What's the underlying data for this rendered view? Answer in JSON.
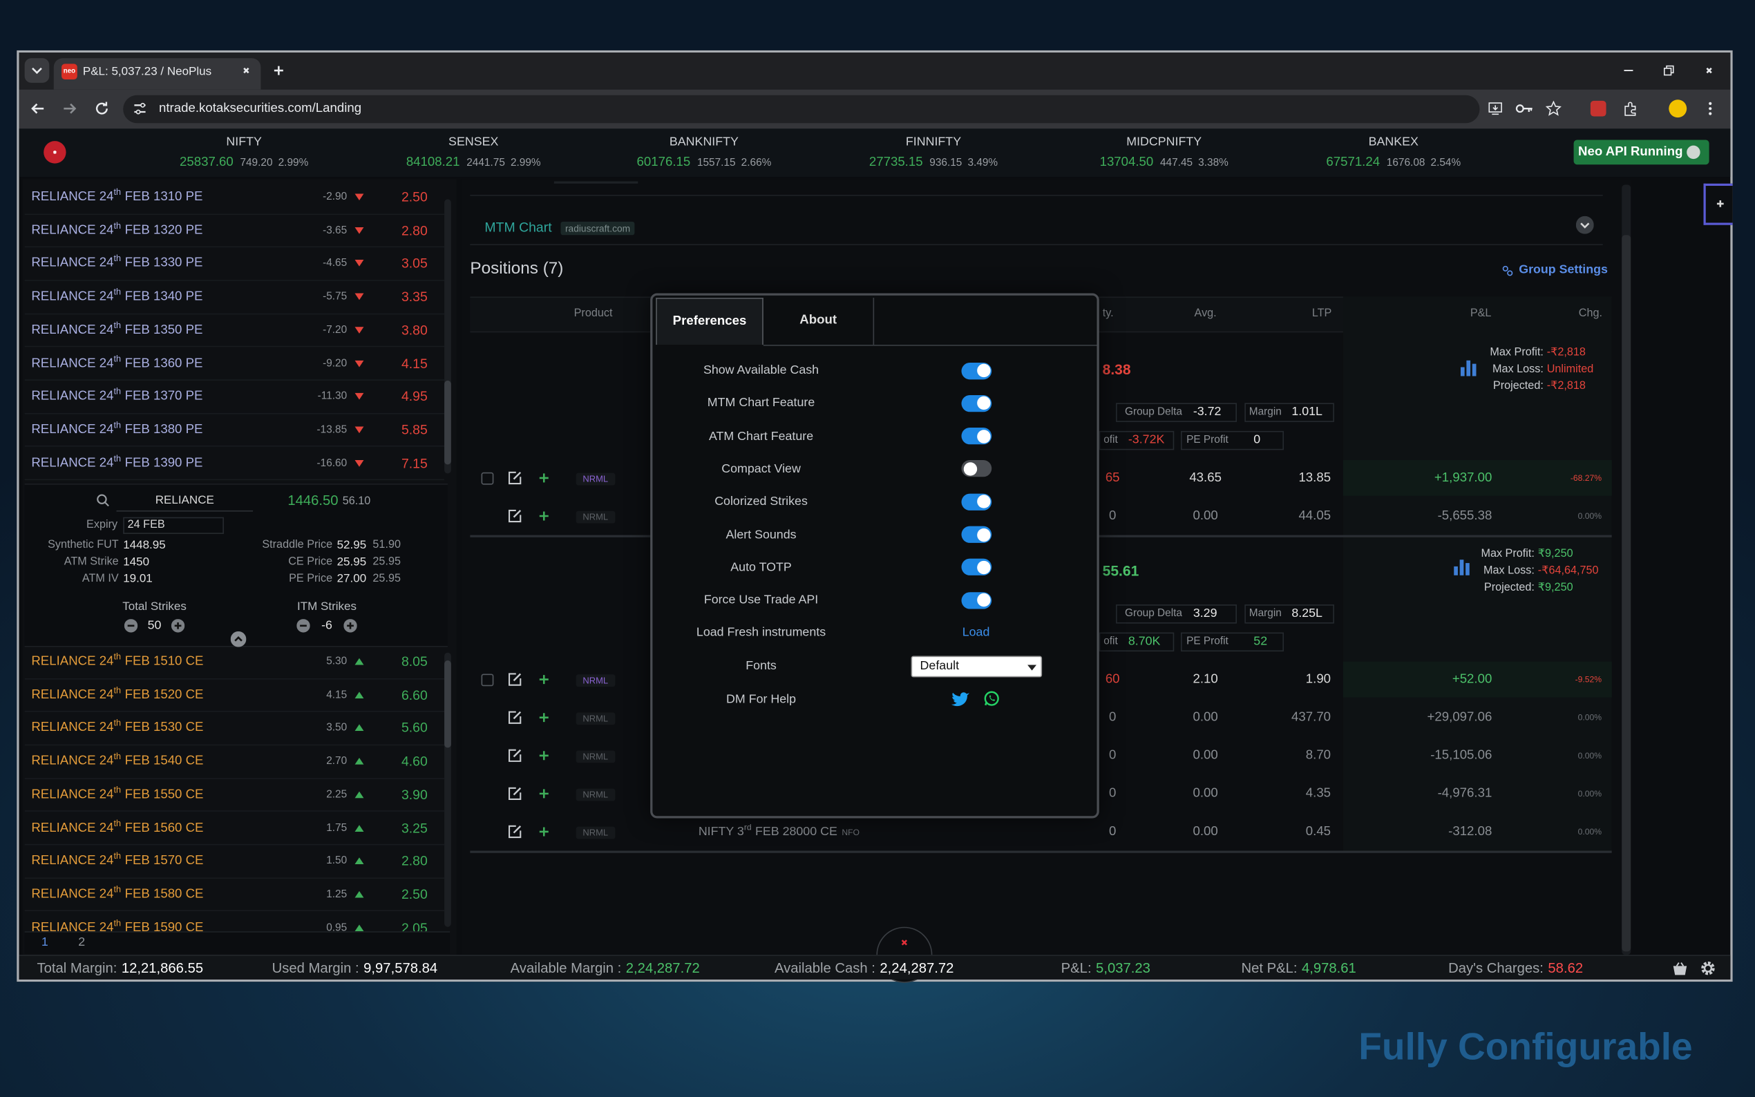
{
  "browser": {
    "tab_icon": "neo",
    "tab_title": "P&L: 5,037.23 / NeoPlus",
    "url": "ntrade.kotaksecurities.com/Landing"
  },
  "indices": [
    {
      "name": "NIFTY",
      "ltp": "25837.60",
      "change": "749.20",
      "pct": "2.99%"
    },
    {
      "name": "SENSEX",
      "ltp": "84108.21",
      "change": "2441.75",
      "pct": "2.99%"
    },
    {
      "name": "BANKNIFTY",
      "ltp": "60176.15",
      "change": "1557.15",
      "pct": "2.66%"
    },
    {
      "name": "FINNIFTY",
      "ltp": "27735.15",
      "change": "936.15",
      "pct": "3.49%"
    },
    {
      "name": "MIDCPNIFTY",
      "ltp": "13704.50",
      "change": "447.45",
      "pct": "3.38%"
    },
    {
      "name": "BANKEX",
      "ltp": "67571.24",
      "change": "1676.08",
      "pct": "2.54%"
    }
  ],
  "api_status": "Neo API Running",
  "put_chain": [
    {
      "prefix": "RELIANCE 24",
      "sup": "th",
      "rest": "FEB 1310 PE",
      "change": "-2.90",
      "ltp": "2.50"
    },
    {
      "prefix": "RELIANCE 24",
      "sup": "th",
      "rest": "FEB 1320 PE",
      "change": "-3.65",
      "ltp": "2.80"
    },
    {
      "prefix": "RELIANCE 24",
      "sup": "th",
      "rest": "FEB 1330 PE",
      "change": "-4.65",
      "ltp": "3.05"
    },
    {
      "prefix": "RELIANCE 24",
      "sup": "th",
      "rest": "FEB 1340 PE",
      "change": "-5.75",
      "ltp": "3.35"
    },
    {
      "prefix": "RELIANCE 24",
      "sup": "th",
      "rest": "FEB 1350 PE",
      "change": "-7.20",
      "ltp": "3.80"
    },
    {
      "prefix": "RELIANCE 24",
      "sup": "th",
      "rest": "FEB 1360 PE",
      "change": "-9.20",
      "ltp": "4.15"
    },
    {
      "prefix": "RELIANCE 24",
      "sup": "th",
      "rest": "FEB 1370 PE",
      "change": "-11.30",
      "ltp": "4.95"
    },
    {
      "prefix": "RELIANCE 24",
      "sup": "th",
      "rest": "FEB 1380 PE",
      "change": "-13.85",
      "ltp": "5.85"
    },
    {
      "prefix": "RELIANCE 24",
      "sup": "th",
      "rest": "FEB 1390 PE",
      "change": "-16.60",
      "ltp": "7.15"
    }
  ],
  "underlying": {
    "search": "RELIANCE",
    "ltp": "1446.50",
    "change": "56.10",
    "expiry_label": "Expiry",
    "expiry": "24 FEB",
    "stats": [
      {
        "label": "Synthetic FUT",
        "value": "1448.95"
      },
      {
        "label": "ATM Strike",
        "value": "1450"
      },
      {
        "label": "ATM IV",
        "value": "19.01"
      }
    ],
    "prices": [
      {
        "label": "Straddle Price",
        "value": "52.95",
        "prev": "51.90"
      },
      {
        "label": "CE Price",
        "value": "25.95",
        "prev": "25.95"
      },
      {
        "label": "PE Price",
        "value": "27.00",
        "prev": "25.95"
      }
    ],
    "total_strikes": {
      "label": "Total Strikes",
      "value": "50"
    },
    "itm_strikes": {
      "label": "ITM Strikes",
      "value": "-6"
    }
  },
  "call_chain": [
    {
      "prefix": "RELIANCE 24",
      "sup": "th",
      "rest": "FEB 1510 CE",
      "change": "5.30",
      "ltp": "8.05"
    },
    {
      "prefix": "RELIANCE 24",
      "sup": "th",
      "rest": "FEB 1520 CE",
      "change": "4.15",
      "ltp": "6.60"
    },
    {
      "prefix": "RELIANCE 24",
      "sup": "th",
      "rest": "FEB 1530 CE",
      "change": "3.50",
      "ltp": "5.60"
    },
    {
      "prefix": "RELIANCE 24",
      "sup": "th",
      "rest": "FEB 1540 CE",
      "change": "2.70",
      "ltp": "4.60"
    },
    {
      "prefix": "RELIANCE 24",
      "sup": "th",
      "rest": "FEB 1550 CE",
      "change": "2.25",
      "ltp": "3.90"
    },
    {
      "prefix": "RELIANCE 24",
      "sup": "th",
      "rest": "FEB 1560 CE",
      "change": "1.75",
      "ltp": "3.25"
    },
    {
      "prefix": "RELIANCE 24",
      "sup": "th",
      "rest": "FEB 1570 CE",
      "change": "1.50",
      "ltp": "2.80"
    },
    {
      "prefix": "RELIANCE 24",
      "sup": "th",
      "rest": "FEB 1580 CE",
      "change": "1.25",
      "ltp": "2.50"
    },
    {
      "prefix": "RELIANCE 24",
      "sup": "th",
      "rest": "FEB 1590 CE",
      "change": "0.95",
      "ltp": "2.05"
    }
  ],
  "pages": [
    "1",
    "2"
  ],
  "mtm": {
    "title": "MTM Chart",
    "source": "radiuscraft.com"
  },
  "positions": {
    "title": "Positions (7)",
    "group_settings": "Group Settings",
    "columns": [
      "Product",
      "ty.",
      "Avg.",
      "LTP",
      "P&L",
      "Chg."
    ],
    "groups": [
      {
        "partial": {
          "text": "8.38",
          "color": "#e5453c"
        },
        "delta": {
          "label": "Group Delta",
          "value": "-3.72"
        },
        "margin": {
          "label": "Margin",
          "value": "1.01L"
        },
        "ce_profit": {
          "label": "ofit",
          "value": "-3.72K",
          "color": "#e5453c"
        },
        "pe_profit": {
          "label": "PE Profit",
          "value": "0",
          "color": "#e8e8e8"
        },
        "max_profit": {
          "label": "Max Profit:",
          "value": "-₹2,818",
          "color": "#e5453c"
        },
        "max_loss": {
          "label": "Max Loss:",
          "value": "Unlimited",
          "color": "#e5453c"
        },
        "projected": {
          "label": "Projected:",
          "value": "-₹2,818",
          "color": "#e5453c"
        },
        "rows": [
          {
            "product": "NRML",
            "qty": "65",
            "avg": "43.65",
            "ltp": "13.85",
            "pnl": "+1,937.00",
            "chg": "-68.27%"
          },
          {
            "product": "NRML",
            "qty": "0",
            "avg": "0.00",
            "ltp": "44.05",
            "pnl": "-5,655.38",
            "chg": "0.00%"
          }
        ]
      },
      {
        "partial": {
          "text": "55.61",
          "color": "#4cc26a"
        },
        "delta": {
          "label": "Group Delta",
          "value": "3.29"
        },
        "margin": {
          "label": "Margin",
          "value": "8.25L"
        },
        "ce_profit": {
          "label": "ofit",
          "value": "8.70K",
          "color": "#4cc26a"
        },
        "pe_profit": {
          "label": "PE Profit",
          "value": "52",
          "color": "#4cc26a"
        },
        "max_profit": {
          "label": "Max Profit:",
          "value": "₹9,250",
          "color": "#4cc26a"
        },
        "max_loss": {
          "label": "Max Loss:",
          "value": "-₹64,64,750",
          "color": "#e5453c"
        },
        "projected": {
          "label": "Projected:",
          "value": "₹9,250",
          "color": "#4cc26a"
        },
        "rows": [
          {
            "product": "NRML",
            "qty": "60",
            "avg": "2.10",
            "ltp": "1.90",
            "pnl": "+52.00",
            "chg": "-9.52%"
          },
          {
            "product": "NRML",
            "qty": "0",
            "avg": "0.00",
            "ltp": "437.70",
            "pnl": "+29,097.06",
            "chg": "0.00%"
          },
          {
            "product": "NRML",
            "qty": "0",
            "avg": "0.00",
            "ltp": "8.70",
            "pnl": "-15,105.06",
            "chg": "0.00%"
          },
          {
            "product": "NRML",
            "qty": "0",
            "avg": "0.00",
            "ltp": "4.35",
            "pnl": "-4,976.31",
            "chg": "0.00%"
          },
          {
            "product": "NRML",
            "instrument": {
              "prefix": "NIFTY 3",
              "sup": "rd",
              "rest": "FEB 28000 CE",
              "exchange": "NFO"
            },
            "qty": "0",
            "avg": "0.00",
            "ltp": "0.45",
            "pnl": "-312.08",
            "chg": "0.00%"
          }
        ]
      }
    ]
  },
  "modal": {
    "tabs": [
      "Preferences",
      "About"
    ],
    "preferences": [
      {
        "label": "Show Available Cash",
        "enabled": true
      },
      {
        "label": "MTM Chart Feature",
        "enabled": true
      },
      {
        "label": "ATM Chart Feature",
        "enabled": true
      },
      {
        "label": "Compact View",
        "enabled": false
      },
      {
        "label": "Colorized Strikes",
        "enabled": true
      },
      {
        "label": "Alert Sounds",
        "enabled": true
      },
      {
        "label": "Auto TOTP",
        "enabled": true
      },
      {
        "label": "Force Use Trade API",
        "enabled": true
      }
    ],
    "load_instruments": {
      "label": "Load Fresh instruments",
      "button": "Load"
    },
    "fonts": {
      "label": "Fonts",
      "value": "Default"
    },
    "help": {
      "label": "DM For Help"
    }
  },
  "footer": [
    {
      "label": "Total Margin:",
      "value": "12,21,866.55",
      "color": "#ffffff"
    },
    {
      "label": "Used Margin :",
      "value": "9,97,578.84",
      "color": "#ffffff"
    },
    {
      "label": "Available Margin :",
      "value": "2,24,287.72",
      "color": "#4cc26a"
    },
    {
      "label": "Available Cash :",
      "value": "2,24,287.72",
      "color": "#ffffff"
    },
    {
      "label": "P&L:",
      "value": "5,037.23",
      "color": "#4cc26a"
    },
    {
      "label": "Net P&L:",
      "value": "4,978.61",
      "color": "#4cc26a"
    },
    {
      "label": "Day's Charges:",
      "value": "58.62",
      "color": "#ff4d4d"
    }
  ],
  "caption": "Fully Configurable"
}
